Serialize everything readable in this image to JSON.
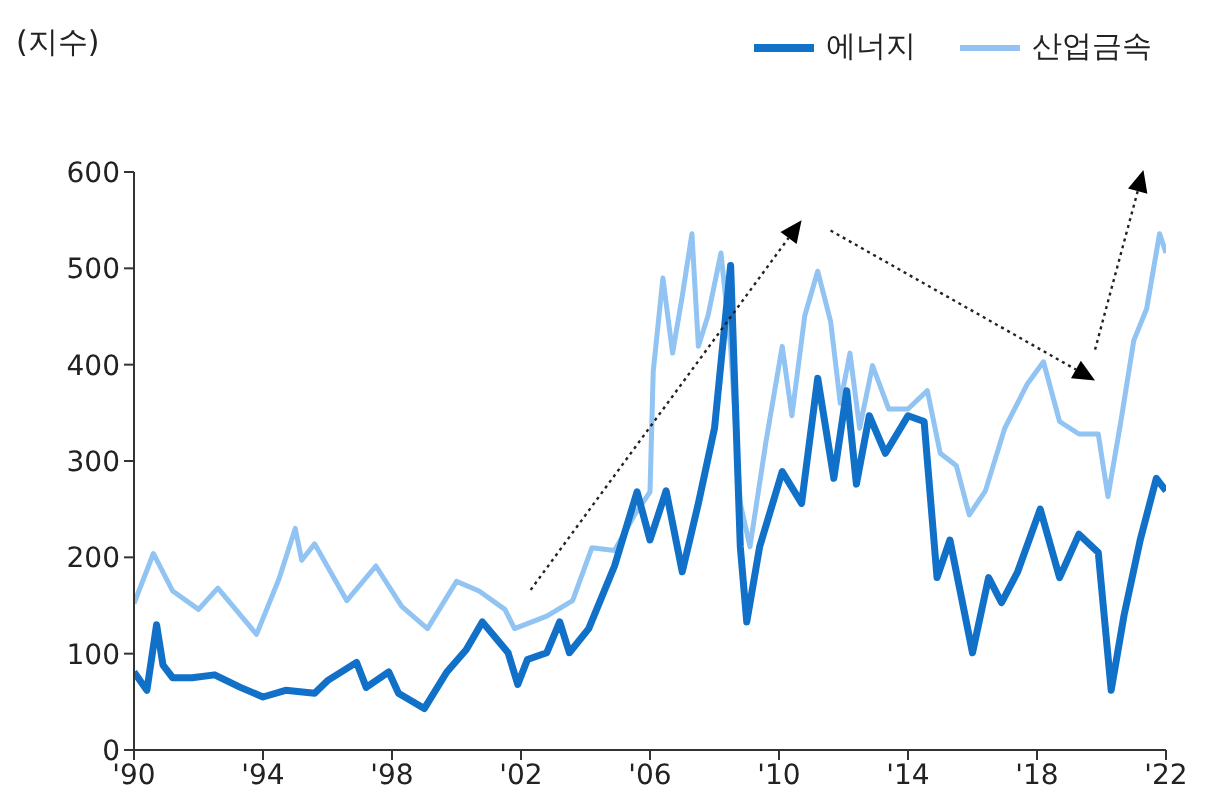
{
  "chart_data": {
    "type": "line",
    "ylabel": "(지수)",
    "xlim": [
      1990,
      2022
    ],
    "ylim": [
      0,
      600
    ],
    "yticks": [
      0,
      100,
      200,
      300,
      400,
      500,
      600
    ],
    "xticks": [
      {
        "value": 1990,
        "label": "'90"
      },
      {
        "value": 1994,
        "label": "'94"
      },
      {
        "value": 1998,
        "label": "'98"
      },
      {
        "value": 2002,
        "label": "'02"
      },
      {
        "value": 2006,
        "label": "'06"
      },
      {
        "value": 2010,
        "label": "'10"
      },
      {
        "value": 2014,
        "label": "'14"
      },
      {
        "value": 2018,
        "label": "'18"
      },
      {
        "value": 2022,
        "label": "'22"
      }
    ],
    "legend": "top right",
    "grid": false,
    "series": [
      {
        "name": "에너지",
        "color": "#1170c8",
        "x": [
          1990,
          1990.4,
          1990.7,
          1990.9,
          1991.2,
          1991.8,
          1992.5,
          1993.3,
          1994,
          1994.7,
          1995.6,
          1996,
          1996.9,
          1997.2,
          1997.9,
          1998.2,
          1999,
          1999.7,
          2000.3,
          2000.8,
          2001.6,
          2001.9,
          2002.2,
          2002.8,
          2003.2,
          2003.5,
          2004.1,
          2004.9,
          2005.6,
          2006,
          2006.5,
          2007,
          2007.5,
          2008,
          2008.5,
          2008.8,
          2009,
          2009.4,
          2010.1,
          2010.7,
          2011.2,
          2011.7,
          2012.1,
          2012.4,
          2012.8,
          2013.3,
          2014,
          2014.5,
          2014.9,
          2015.3,
          2016,
          2016.5,
          2016.9,
          2017.4,
          2018.1,
          2018.7,
          2019.3,
          2019.9,
          2020.3,
          2020.7,
          2021.2,
          2021.7,
          2022
        ],
        "values": [
          81,
          62,
          130,
          88,
          75,
          75,
          78,
          65,
          55,
          62,
          59,
          72,
          91,
          65,
          81,
          59,
          43,
          81,
          104,
          133,
          101,
          68,
          94,
          101,
          133,
          101,
          126,
          191,
          268,
          218,
          269,
          185,
          256,
          334,
          503,
          211,
          133,
          211,
          289,
          256,
          386,
          282,
          373,
          276,
          347,
          308,
          347,
          341,
          179,
          218,
          101,
          179,
          153,
          185,
          250,
          179,
          224,
          205,
          62,
          140,
          218,
          282,
          269
        ]
      },
      {
        "name": "산업금속",
        "color": "#91c4f2",
        "x": [
          1990,
          1990.6,
          1991.2,
          1992,
          1992.6,
          1993.8,
          1994.5,
          1995,
          1995.2,
          1995.6,
          1996.6,
          1997.5,
          1998.3,
          1999.1,
          2000,
          2000.7,
          2001.5,
          2001.8,
          2002.8,
          2003.6,
          2004.2,
          2004.9,
          2005.5,
          2006,
          2006.1,
          2006.4,
          2006.7,
          2007,
          2007.3,
          2007.5,
          2007.8,
          2008.2,
          2008.5,
          2008.8,
          2009.1,
          2009.6,
          2010.1,
          2010.4,
          2010.8,
          2011.2,
          2011.6,
          2011.9,
          2012.2,
          2012.5,
          2012.9,
          2013.4,
          2014,
          2014.6,
          2015,
          2015.5,
          2015.9,
          2016.4,
          2017,
          2017.7,
          2018.2,
          2018.7,
          2019.3,
          2019.9,
          2020.2,
          2020.6,
          2021,
          2021.4,
          2021.8,
          2022
        ],
        "values": [
          152,
          204,
          165,
          146,
          168,
          120,
          178,
          230,
          197,
          214,
          155,
          191,
          149,
          126,
          175,
          165,
          146,
          126,
          139,
          155,
          210,
          207,
          243,
          268,
          393,
          490,
          412,
          471,
          536,
          419,
          451,
          516,
          419,
          256,
          211,
          321,
          419,
          347,
          451,
          497,
          445,
          360,
          412,
          334,
          399,
          354,
          354,
          373,
          308,
          295,
          244,
          269,
          334,
          380,
          403,
          341,
          328,
          328,
          263,
          341,
          425,
          458,
          536,
          516
        ]
      }
    ]
  }
}
